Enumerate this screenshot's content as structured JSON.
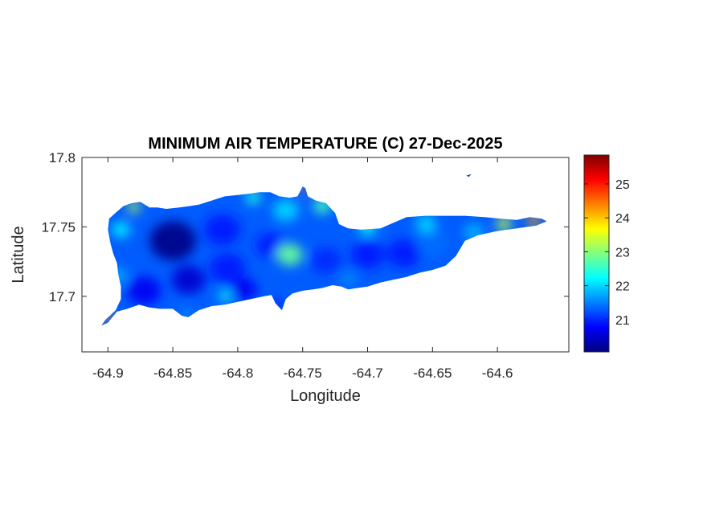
{
  "chart_data": {
    "type": "heatmap",
    "title": "MINIMUM AIR TEMPERATURE (C) 27-Dec-2025",
    "xlabel": "Longitude",
    "ylabel": "Latitude",
    "xlim": [
      -64.92,
      -64.545
    ],
    "ylim": [
      17.66,
      17.8
    ],
    "xticks": [
      -64.9,
      -64.85,
      -64.8,
      -64.75,
      -64.7,
      -64.65,
      -64.6
    ],
    "xtick_labels": [
      "-64.9",
      "-64.85",
      "-64.8",
      "-64.75",
      "-64.7",
      "-64.65",
      "-64.6"
    ],
    "yticks": [
      17.7,
      17.75,
      17.8
    ],
    "ytick_labels": [
      "17.7",
      "17.75",
      "17.8"
    ],
    "colorbar": {
      "colormap": "jet",
      "range": [
        20.05,
        25.85
      ],
      "ticks": [
        21,
        22,
        23,
        24,
        25
      ],
      "tick_labels": [
        "21",
        "22",
        "23",
        "24",
        "25"
      ]
    },
    "grid": false,
    "region_outline": [
      [
        -64.9,
        17.681
      ],
      [
        -64.893,
        17.689
      ],
      [
        -64.885,
        17.691
      ],
      [
        -64.876,
        17.694
      ],
      [
        -64.868,
        17.692
      ],
      [
        -64.86,
        17.691
      ],
      [
        -64.85,
        17.691
      ],
      [
        -64.843,
        17.686
      ],
      [
        -64.838,
        17.685
      ],
      [
        -64.83,
        17.69
      ],
      [
        -64.82,
        17.693
      ],
      [
        -64.81,
        17.694
      ],
      [
        -64.8,
        17.696
      ],
      [
        -64.79,
        17.698
      ],
      [
        -64.78,
        17.7
      ],
      [
        -64.774,
        17.701
      ],
      [
        -64.771,
        17.695
      ],
      [
        -64.766,
        17.69
      ],
      [
        -64.763,
        17.698
      ],
      [
        -64.758,
        17.702
      ],
      [
        -64.75,
        17.704
      ],
      [
        -64.742,
        17.705
      ],
      [
        -64.735,
        17.706
      ],
      [
        -64.727,
        17.708
      ],
      [
        -64.72,
        17.707
      ],
      [
        -64.715,
        17.705
      ],
      [
        -64.708,
        17.706
      ],
      [
        -64.7,
        17.707
      ],
      [
        -64.69,
        17.71
      ],
      [
        -64.68,
        17.712
      ],
      [
        -64.67,
        17.714
      ],
      [
        -64.66,
        17.717
      ],
      [
        -64.65,
        17.719
      ],
      [
        -64.64,
        17.722
      ],
      [
        -64.632,
        17.729
      ],
      [
        -64.625,
        17.74
      ],
      [
        -64.615,
        17.744
      ],
      [
        -64.6,
        17.747
      ],
      [
        -64.585,
        17.749
      ],
      [
        -64.57,
        17.751
      ],
      [
        -64.562,
        17.754
      ],
      [
        -64.566,
        17.756
      ],
      [
        -64.575,
        17.757
      ],
      [
        -64.585,
        17.755
      ],
      [
        -64.598,
        17.756
      ],
      [
        -64.61,
        17.757
      ],
      [
        -64.625,
        17.758
      ],
      [
        -64.64,
        17.758
      ],
      [
        -64.655,
        17.758
      ],
      [
        -64.67,
        17.757
      ],
      [
        -64.68,
        17.753
      ],
      [
        -64.69,
        17.749
      ],
      [
        -64.705,
        17.748
      ],
      [
        -64.715,
        17.749
      ],
      [
        -64.722,
        17.752
      ],
      [
        -64.725,
        17.76
      ],
      [
        -64.732,
        17.767
      ],
      [
        -64.74,
        17.769
      ],
      [
        -64.746,
        17.772
      ],
      [
        -64.748,
        17.778
      ],
      [
        -64.75,
        17.779
      ],
      [
        -64.754,
        17.772
      ],
      [
        -64.76,
        17.771
      ],
      [
        -64.768,
        17.772
      ],
      [
        -64.775,
        17.775
      ],
      [
        -64.783,
        17.775
      ],
      [
        -64.79,
        17.774
      ],
      [
        -64.8,
        17.773
      ],
      [
        -64.81,
        17.772
      ],
      [
        -64.82,
        17.769
      ],
      [
        -64.83,
        17.766
      ],
      [
        -64.837,
        17.765
      ],
      [
        -64.845,
        17.764
      ],
      [
        -64.855,
        17.763
      ],
      [
        -64.862,
        17.764
      ],
      [
        -64.868,
        17.764
      ],
      [
        -64.875,
        17.768
      ],
      [
        -64.882,
        17.767
      ],
      [
        -64.888,
        17.765
      ],
      [
        -64.893,
        17.761
      ],
      [
        -64.899,
        17.756
      ],
      [
        -64.9,
        17.748
      ],
      [
        -64.898,
        17.738
      ],
      [
        -64.896,
        17.731
      ],
      [
        -64.893,
        17.724
      ],
      [
        -64.892,
        17.716
      ],
      [
        -64.89,
        17.707
      ],
      [
        -64.89,
        17.698
      ],
      [
        -64.894,
        17.69
      ],
      [
        -64.902,
        17.683
      ],
      [
        -64.905,
        17.679
      ]
    ],
    "islet_outline": [
      [
        -64.624,
        17.787
      ],
      [
        -64.62,
        17.788
      ],
      [
        -64.622,
        17.786
      ]
    ],
    "background_value": 21.3,
    "field": [
      {
        "lon": -64.85,
        "lat": 17.74,
        "value": 20.1,
        "radius": 0.018
      },
      {
        "lon": -64.838,
        "lat": 17.712,
        "value": 20.5,
        "radius": 0.013
      },
      {
        "lon": -64.872,
        "lat": 17.704,
        "value": 20.7,
        "radius": 0.013
      },
      {
        "lon": -64.812,
        "lat": 17.748,
        "value": 20.9,
        "radius": 0.014
      },
      {
        "lon": -64.775,
        "lat": 17.737,
        "value": 20.9,
        "radius": 0.011
      },
      {
        "lon": -64.808,
        "lat": 17.72,
        "value": 20.9,
        "radius": 0.014
      },
      {
        "lon": -64.795,
        "lat": 17.705,
        "value": 20.7,
        "radius": 0.01
      },
      {
        "lon": -64.732,
        "lat": 17.726,
        "value": 21.0,
        "radius": 0.012
      },
      {
        "lon": -64.7,
        "lat": 17.73,
        "value": 20.9,
        "radius": 0.013
      },
      {
        "lon": -64.672,
        "lat": 17.731,
        "value": 20.9,
        "radius": 0.013
      },
      {
        "lon": -64.65,
        "lat": 17.738,
        "value": 21.4,
        "radius": 0.012
      },
      {
        "lon": -64.76,
        "lat": 17.73,
        "value": 22.8,
        "radius": 0.01
      },
      {
        "lon": -64.763,
        "lat": 17.762,
        "value": 22.0,
        "radius": 0.01
      },
      {
        "lon": -64.735,
        "lat": 17.765,
        "value": 22.6,
        "radius": 0.007
      },
      {
        "lon": -64.7,
        "lat": 17.75,
        "value": 22.3,
        "radius": 0.007
      },
      {
        "lon": -64.655,
        "lat": 17.752,
        "value": 22.0,
        "radius": 0.008
      },
      {
        "lon": -64.618,
        "lat": 17.746,
        "value": 21.8,
        "radius": 0.008
      },
      {
        "lon": -64.595,
        "lat": 17.752,
        "value": 23.3,
        "radius": 0.006
      },
      {
        "lon": -64.572,
        "lat": 17.754,
        "value": 24.2,
        "radius": 0.005
      },
      {
        "lon": -64.89,
        "lat": 17.748,
        "value": 22.2,
        "radius": 0.007
      },
      {
        "lon": -64.88,
        "lat": 17.764,
        "value": 23.2,
        "radius": 0.005
      },
      {
        "lon": -64.892,
        "lat": 17.715,
        "value": 21.9,
        "radius": 0.006
      },
      {
        "lon": -64.898,
        "lat": 17.683,
        "value": 24.3,
        "radius": 0.004
      },
      {
        "lon": -64.788,
        "lat": 17.771,
        "value": 22.4,
        "radius": 0.006
      },
      {
        "lon": -64.81,
        "lat": 17.7,
        "value": 22.3,
        "radius": 0.005
      },
      {
        "lon": -64.748,
        "lat": 17.777,
        "value": 24.3,
        "radius": 0.003
      },
      {
        "lon": -64.77,
        "lat": 17.694,
        "value": 20.8,
        "radius": 0.004
      },
      {
        "lon": -64.84,
        "lat": 17.687,
        "value": 21.6,
        "radius": 0.005
      },
      {
        "lon": -64.715,
        "lat": 17.712,
        "value": 21.6,
        "radius": 0.006
      },
      {
        "lon": -64.622,
        "lat": 17.787,
        "value": 25.7,
        "radius": 0.003
      }
    ]
  }
}
